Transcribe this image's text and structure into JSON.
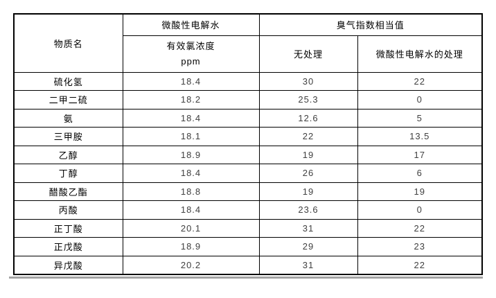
{
  "table": {
    "header": {
      "substance_col": "物质名",
      "group1": "微酸性电解水",
      "group1_sub_line1": "有效氯浓度",
      "group1_sub_line2": "ppm",
      "group2": "臭气指数相当值",
      "group2_sub1": "无处理",
      "group2_sub2": "微酸性电解水的处理"
    },
    "rows": [
      {
        "substance": "硫化氢",
        "chlorine_ppm": "18.4",
        "untreated": "30",
        "treated": "22"
      },
      {
        "substance": "二甲二硫",
        "chlorine_ppm": "18.2",
        "untreated": "25.3",
        "treated": "0"
      },
      {
        "substance": "氨",
        "chlorine_ppm": "18.4",
        "untreated": "12.6",
        "treated": "5"
      },
      {
        "substance": "三甲胺",
        "chlorine_ppm": "18.1",
        "untreated": "22",
        "treated": "13.5"
      },
      {
        "substance": "乙醇",
        "chlorine_ppm": "18.9",
        "untreated": "19",
        "treated": "17"
      },
      {
        "substance": "丁醇",
        "chlorine_ppm": "18.4",
        "untreated": "26",
        "treated": "6"
      },
      {
        "substance": "醋酸乙酯",
        "chlorine_ppm": "18.8",
        "untreated": "19",
        "treated": "19"
      },
      {
        "substance": "丙酸",
        "chlorine_ppm": "18.4",
        "untreated": "23.6",
        "treated": "0"
      },
      {
        "substance": "正丁酸",
        "chlorine_ppm": "20.1",
        "untreated": "31",
        "treated": "22"
      },
      {
        "substance": "正戊酸",
        "chlorine_ppm": "18.9",
        "untreated": "29",
        "treated": "23"
      },
      {
        "substance": "异戊酸",
        "chlorine_ppm": "20.2",
        "untreated": "31",
        "treated": "22"
      }
    ],
    "colors": {
      "border": "#000000",
      "header_text": "#000000",
      "number_text": "#404040",
      "shadow_line": "#a3a3a3",
      "background": "#ffffff"
    }
  }
}
